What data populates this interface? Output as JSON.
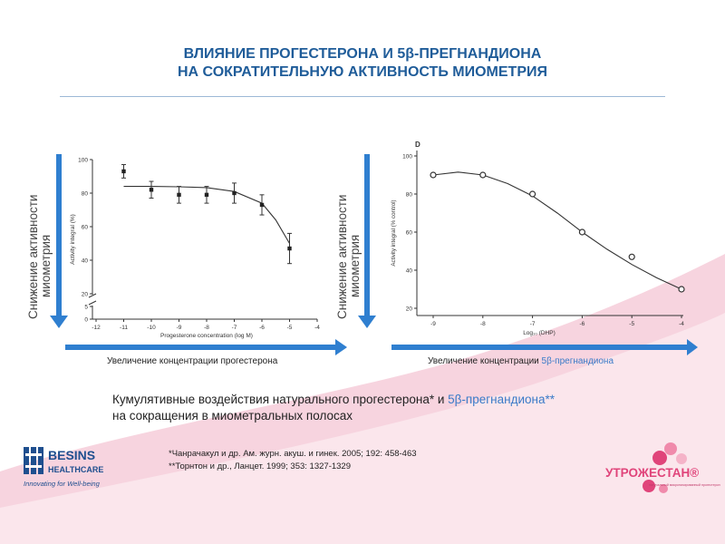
{
  "slide": {
    "title_lines": [
      "ВЛИЯНИЕ ПРОГЕСТЕРОНА И 5β-ПРЕГНАНДИОНА",
      "НА СОКРАТИТЕЛЬНУЮ АКТИВНОСТЬ МИОМЕТРИЯ"
    ],
    "colors": {
      "title": "#1f5c99",
      "arrow_blue": "#2f7fd0",
      "swoosh_pink": "#f7d4df",
      "beta_blue": "#3a7bc8"
    },
    "vertical_arrow_label": [
      "Снижение активности",
      "миометрия"
    ],
    "left_arrow_caption": "Увеличение концентрации прогестерона",
    "right_arrow_caption": {
      "text": "Увеличение концентрации ",
      "highlight": "5β-прегнандиона"
    },
    "subtitle": {
      "line1_part1": "Кумулятивные воздействия натурального прогестерона* и ",
      "line1_highlight": "5β-прегнандиона**",
      "line2": "на сокращения в миометральных полосах"
    },
    "references": [
      "*Чанрачакул и др. Ам. журн. акуш. и гинек. 2005; 192: 458-463",
      "**Торнтон и др., Ланцет. 1999; 353: 1327-1329"
    ],
    "besins_logo": {
      "name": "BESINS",
      "sub": "HEALTHCARE",
      "tagline": "Innovating for Well-being",
      "color": "#1f4f8f",
      "icon": "besins-logo-icon"
    },
    "utrozhestan_logo": {
      "name": "УТРОЖЕСТАН®",
      "tagline": "натуральный микронизированный прогестерон",
      "color": "#e0447a",
      "icon": "circles-logo-icon"
    }
  },
  "chart_data": [
    {
      "type": "line",
      "panel_label": "",
      "xlabel": "Progesterone concentration (log M)",
      "ylabel": "Activity integral (%)",
      "xlim": [
        -12,
        -4
      ],
      "x_ticks": [
        -12,
        -11,
        -10,
        -9,
        -8,
        -7,
        -6,
        -5,
        -4
      ],
      "y_ticks": [
        0,
        5,
        20,
        40,
        60,
        80,
        100
      ],
      "axis_break": true,
      "points": [
        {
          "x": -11,
          "y": 93,
          "err": 4
        },
        {
          "x": -10,
          "y": 82,
          "err": 5
        },
        {
          "x": -9,
          "y": 79,
          "err": 5
        },
        {
          "x": -8,
          "y": 79,
          "err": 5
        },
        {
          "x": -7,
          "y": 80,
          "err": 6
        },
        {
          "x": -6,
          "y": 73,
          "err": 6
        },
        {
          "x": -5,
          "y": 47,
          "err": 9
        }
      ],
      "fit_curve": [
        [
          -11,
          84
        ],
        [
          -10,
          84
        ],
        [
          -9,
          83.8
        ],
        [
          -8,
          83.3
        ],
        [
          -7,
          81
        ],
        [
          -6,
          74
        ],
        [
          -5.5,
          64
        ],
        [
          -5,
          50
        ]
      ],
      "marker": "filled-square",
      "grid": false
    },
    {
      "type": "line",
      "panel_label": "D",
      "xlabel": "Log₁₀ (DHP)",
      "ylabel": "Activity integral (% control)",
      "xlim": [
        -9,
        -4
      ],
      "ylim": [
        20,
        100
      ],
      "x_ticks": [
        -9,
        -8,
        -7,
        -6,
        -5,
        -4
      ],
      "y_ticks": [
        20,
        40,
        60,
        80,
        100
      ],
      "points": [
        {
          "x": -9,
          "y": 90
        },
        {
          "x": -8,
          "y": 90
        },
        {
          "x": -7,
          "y": 80
        },
        {
          "x": -6,
          "y": 60
        },
        {
          "x": -5,
          "y": 47
        },
        {
          "x": -4,
          "y": 30
        }
      ],
      "fit_curve": [
        [
          -9,
          90
        ],
        [
          -8.5,
          91.5
        ],
        [
          -8,
          90
        ],
        [
          -7.5,
          85.5
        ],
        [
          -7,
          79
        ],
        [
          -6.5,
          70
        ],
        [
          -6,
          60
        ],
        [
          -5.5,
          51
        ],
        [
          -5,
          43
        ],
        [
          -4.5,
          36
        ],
        [
          -4,
          30
        ]
      ],
      "marker": "open-circle",
      "grid": false
    }
  ]
}
